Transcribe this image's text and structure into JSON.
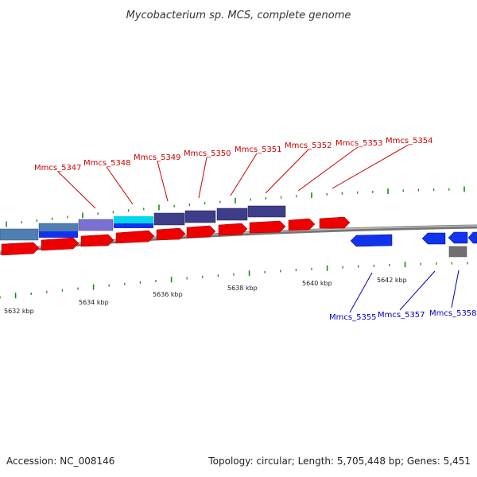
{
  "title": "Mycobacterium sp. MCS, complete genome",
  "footer": {
    "accession": "Accession: NC_008146",
    "summary": "Topology: circular; Length: 5,705,448 bp; Genes: 5,451"
  },
  "colors": {
    "forward_label": "#cc0000",
    "reverse_label": "#0000bb",
    "backbone": "#888888",
    "tick": "#1a8a1a",
    "cds_red": "#ee0000",
    "cds_blue": "#1133ee",
    "cds_gray": "#707070",
    "cds_steel": "#4f7fb0",
    "cds_navy": "#3d3d8a",
    "cds_lavender": "#7a70d0",
    "cds_cyan": "#00d8e8"
  },
  "scale_labels": [
    "5632 kbp",
    "5634 kbp",
    "5636 kbp",
    "5638 kbp",
    "5640 kbp",
    "5642 kbp"
  ],
  "gene_labels_forward": [
    "Mmcs_5347",
    "Mmcs_5348",
    "Mmcs_5349",
    "Mmcs_5350",
    "Mmcs_5351",
    "Mmcs_5352",
    "Mmcs_5353",
    "Mmcs_5354"
  ],
  "gene_labels_reverse": [
    "Mmcs_5355",
    "Mmcs_5357",
    "Mmcs_5358"
  ]
}
